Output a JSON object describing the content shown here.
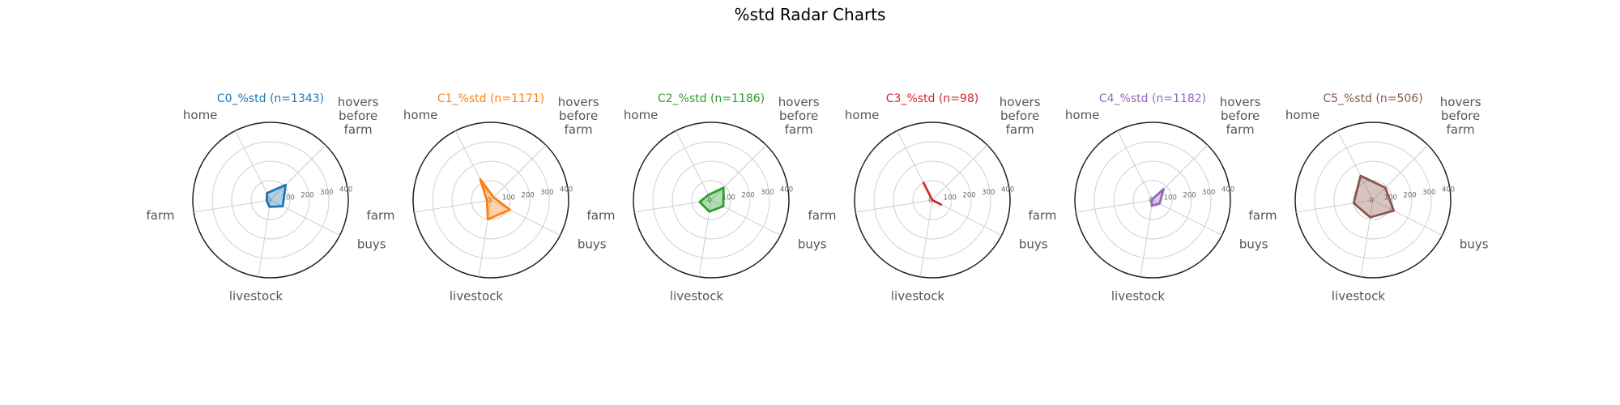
{
  "title": "%std Radar Charts",
  "chart_data": [
    {
      "type": "radar",
      "title": "C0_%std (n=1343)",
      "color": "#1f77b4",
      "categories": [
        "hovers before farm",
        "home",
        "farm",
        "livestock",
        "buys"
      ],
      "values": [
        110,
        40,
        20,
        35,
        70
      ],
      "rticks": [
        0,
        100,
        200,
        300,
        400
      ],
      "rlim": [
        0,
        400
      ],
      "grid": true
    },
    {
      "type": "radar",
      "title": "C1_%std (n=1171)",
      "color": "#ff7f0e",
      "categories": [
        "hovers before farm",
        "home",
        "farm",
        "livestock",
        "buys"
      ],
      "values": [
        20,
        120,
        20,
        100,
        110
      ],
      "rticks": [
        0,
        100,
        200,
        300,
        400
      ],
      "rlim": [
        0,
        400
      ],
      "grid": true
    },
    {
      "type": "radar",
      "title": "C2_%std (n=1186)",
      "color": "#2ca02c",
      "categories": [
        "hovers before farm",
        "home",
        "farm",
        "livestock",
        "buys"
      ],
      "values": [
        90,
        30,
        60,
        60,
        70
      ],
      "rticks": [
        0,
        100,
        200,
        300,
        400
      ],
      "rlim": [
        0,
        400
      ],
      "grid": true
    },
    {
      "type": "radar",
      "title": "C3_%std (n=98)",
      "color": "#d62728",
      "categories": [
        "hovers before farm",
        "home",
        "farm",
        "livestock",
        "buys"
      ],
      "values": [
        0,
        100,
        0,
        0,
        50
      ],
      "rticks": [
        0,
        100,
        200,
        300,
        400
      ],
      "rlim": [
        0,
        400
      ],
      "grid": true
    },
    {
      "type": "radar",
      "title": "C4_%std (n=1182)",
      "color": "#9467bd",
      "categories": [
        "hovers before farm",
        "home",
        "farm",
        "livestock",
        "buys"
      ],
      "values": [
        80,
        5,
        5,
        30,
        40
      ],
      "rticks": [
        0,
        100,
        200,
        300,
        400
      ],
      "rlim": [
        0,
        400
      ],
      "grid": true
    },
    {
      "type": "radar",
      "title": "C5_%std (n=506)",
      "color": "#8c564b",
      "categories": [
        "hovers before farm",
        "home",
        "farm",
        "livestock",
        "buys"
      ],
      "values": [
        90,
        140,
        100,
        90,
        120
      ],
      "rticks": [
        0,
        100,
        200,
        300,
        400
      ],
      "rlim": [
        0,
        400
      ],
      "grid": true
    }
  ]
}
